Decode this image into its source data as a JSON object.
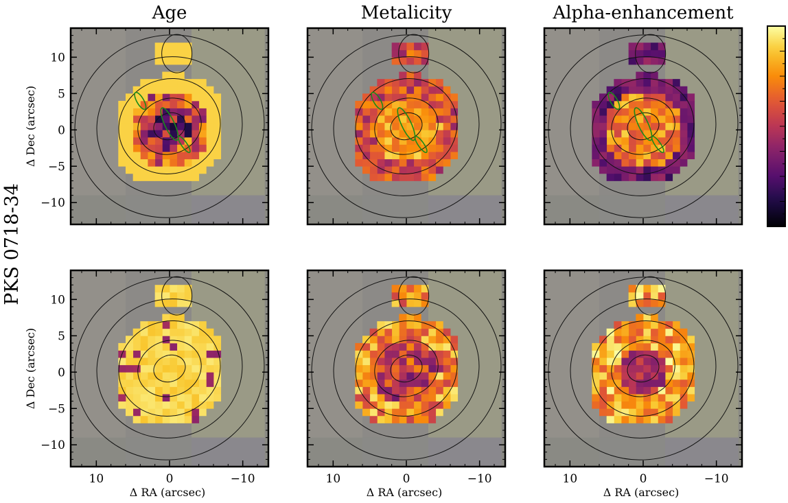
{
  "chart_data": {
    "type": "heatmap",
    "row_label": "PKS 0718-34",
    "columns": [
      "Age",
      "Metalicity",
      "Alpha-enhancement"
    ],
    "panels": [
      {
        "row": 0,
        "col": 0,
        "title": "Age"
      },
      {
        "row": 0,
        "col": 1,
        "title": "Metalicity"
      },
      {
        "row": 0,
        "col": 2,
        "title": "Alpha-enhancement"
      },
      {
        "row": 1,
        "col": 0,
        "title": ""
      },
      {
        "row": 1,
        "col": 1,
        "title": ""
      },
      {
        "row": 1,
        "col": 2,
        "title": ""
      }
    ],
    "xlabel": "Δ RA (arcsec)",
    "ylabel": "Δ Dec (arcsec)",
    "xlim": [
      13.5,
      -13.5
    ],
    "ylim": [
      -13,
      14
    ],
    "xticks": [
      10,
      0,
      -10
    ],
    "xtick_labels": [
      "10",
      "0",
      "−10"
    ],
    "yticks": [
      10,
      5,
      0,
      -5,
      -10
    ],
    "ytick_labels": [
      "10",
      "5",
      "0",
      "−5",
      "−10"
    ],
    "colormap": "inferno",
    "colorbar": {
      "ticks_labeled": false
    },
    "contour_color": "#111111",
    "highlight_contour_color": "#1a8a1a",
    "background_color": "#8a8a84"
  }
}
